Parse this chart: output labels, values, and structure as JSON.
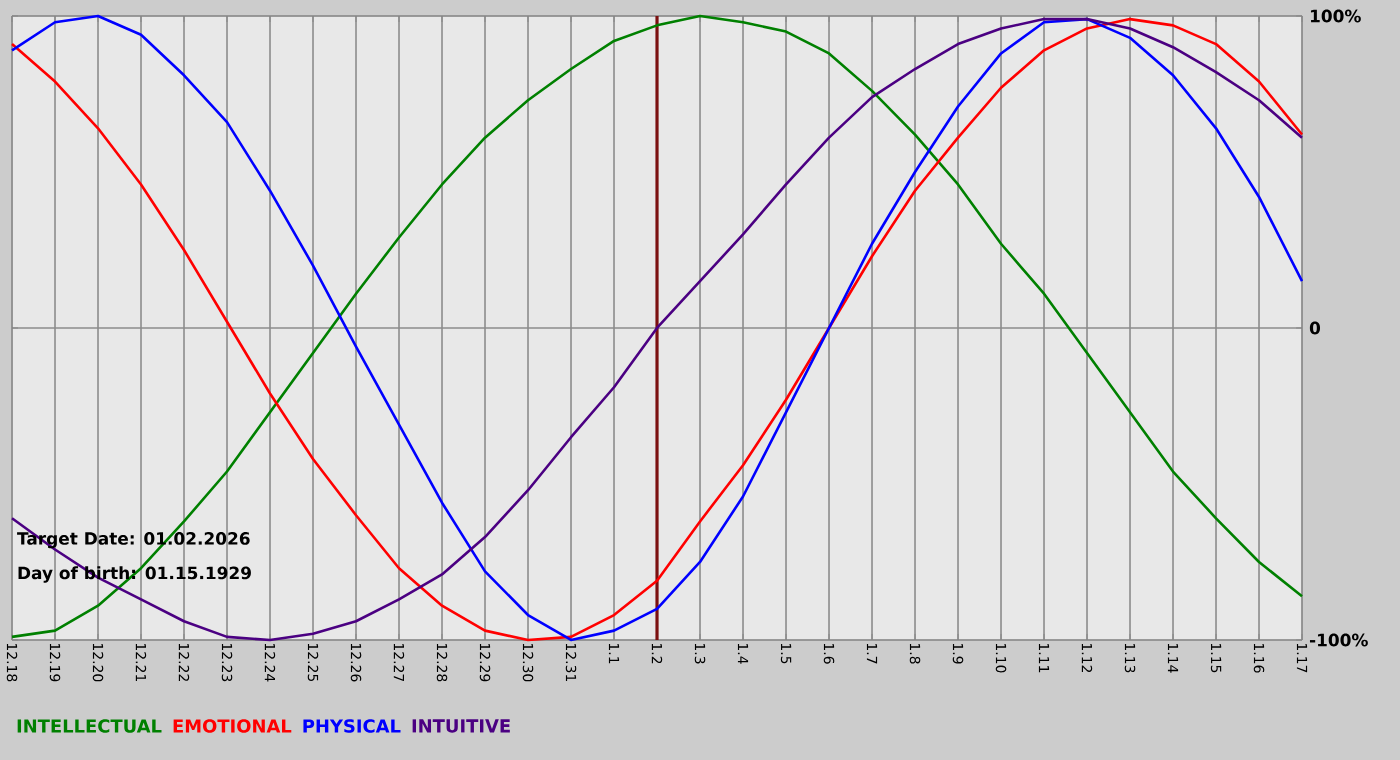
{
  "chart_data": {
    "type": "line",
    "categories": [
      "12.18",
      "12.19",
      "12.20",
      "12.21",
      "12.22",
      "12.23",
      "12.24",
      "12.25",
      "12.26",
      "12.27",
      "12.28",
      "12.29",
      "12.30",
      "12.31",
      "1.1",
      "1.2",
      "1.3",
      "1.4",
      "1.5",
      "1.6",
      "1.7",
      "1.8",
      "1.9",
      "1.10",
      "1.11",
      "1.12",
      "1.13",
      "1.14",
      "1.15",
      "1.16",
      "1.17"
    ],
    "series": [
      {
        "name": "INTELLECTUAL",
        "color": "#008000",
        "values": [
          -99,
          -97,
          -89,
          -77,
          -62,
          -46,
          -27,
          -8,
          11,
          29,
          46,
          61,
          73,
          83,
          92,
          97,
          100,
          98,
          95,
          88,
          76,
          62,
          46,
          27,
          11,
          -8,
          -27,
          -46,
          -61,
          -75,
          -86
        ]
      },
      {
        "name": "EMOTIONAL",
        "color": "#ff0000",
        "values": [
          91,
          79,
          64,
          46,
          25,
          2,
          -21,
          -42,
          -60,
          -77,
          -89,
          -97,
          -100,
          -99,
          -92,
          -81,
          -62,
          -44,
          -23,
          0,
          23,
          44,
          61,
          77,
          89,
          96,
          99,
          97,
          91,
          79,
          62
        ]
      },
      {
        "name": "PHYSICAL",
        "color": "#0000ff",
        "values": [
          89,
          98,
          100,
          94,
          81,
          66,
          44,
          20,
          -6,
          -31,
          -56,
          -78,
          -92,
          -100,
          -97,
          -90,
          -75,
          -54,
          -27,
          0,
          27,
          50,
          71,
          88,
          98,
          99,
          93,
          81,
          64,
          42,
          15
        ]
      },
      {
        "name": "INTUITIVE",
        "color": "#4b0082",
        "values": [
          -61,
          -71,
          -80,
          -87,
          -94,
          -99,
          -100,
          -98,
          -94,
          -87,
          -79,
          -67,
          -52,
          -35,
          -19,
          0,
          15,
          30,
          46,
          61,
          74,
          83,
          91,
          96,
          99,
          99,
          96,
          90,
          82,
          73,
          61
        ]
      }
    ],
    "ylim": [
      -100,
      100
    ],
    "yticks": [
      {
        "value": 100,
        "label": "100%"
      },
      0,
      {
        "value": -100,
        "label": "-100%"
      }
    ],
    "grid": true,
    "legend": "bottom",
    "ref_lines": [
      {
        "axis": "x",
        "value": "1.2",
        "color": "#7b1010"
      }
    ],
    "annotations": [
      "Target Date: 01.02.2026",
      "Day of birth: 01.15.1929"
    ]
  }
}
